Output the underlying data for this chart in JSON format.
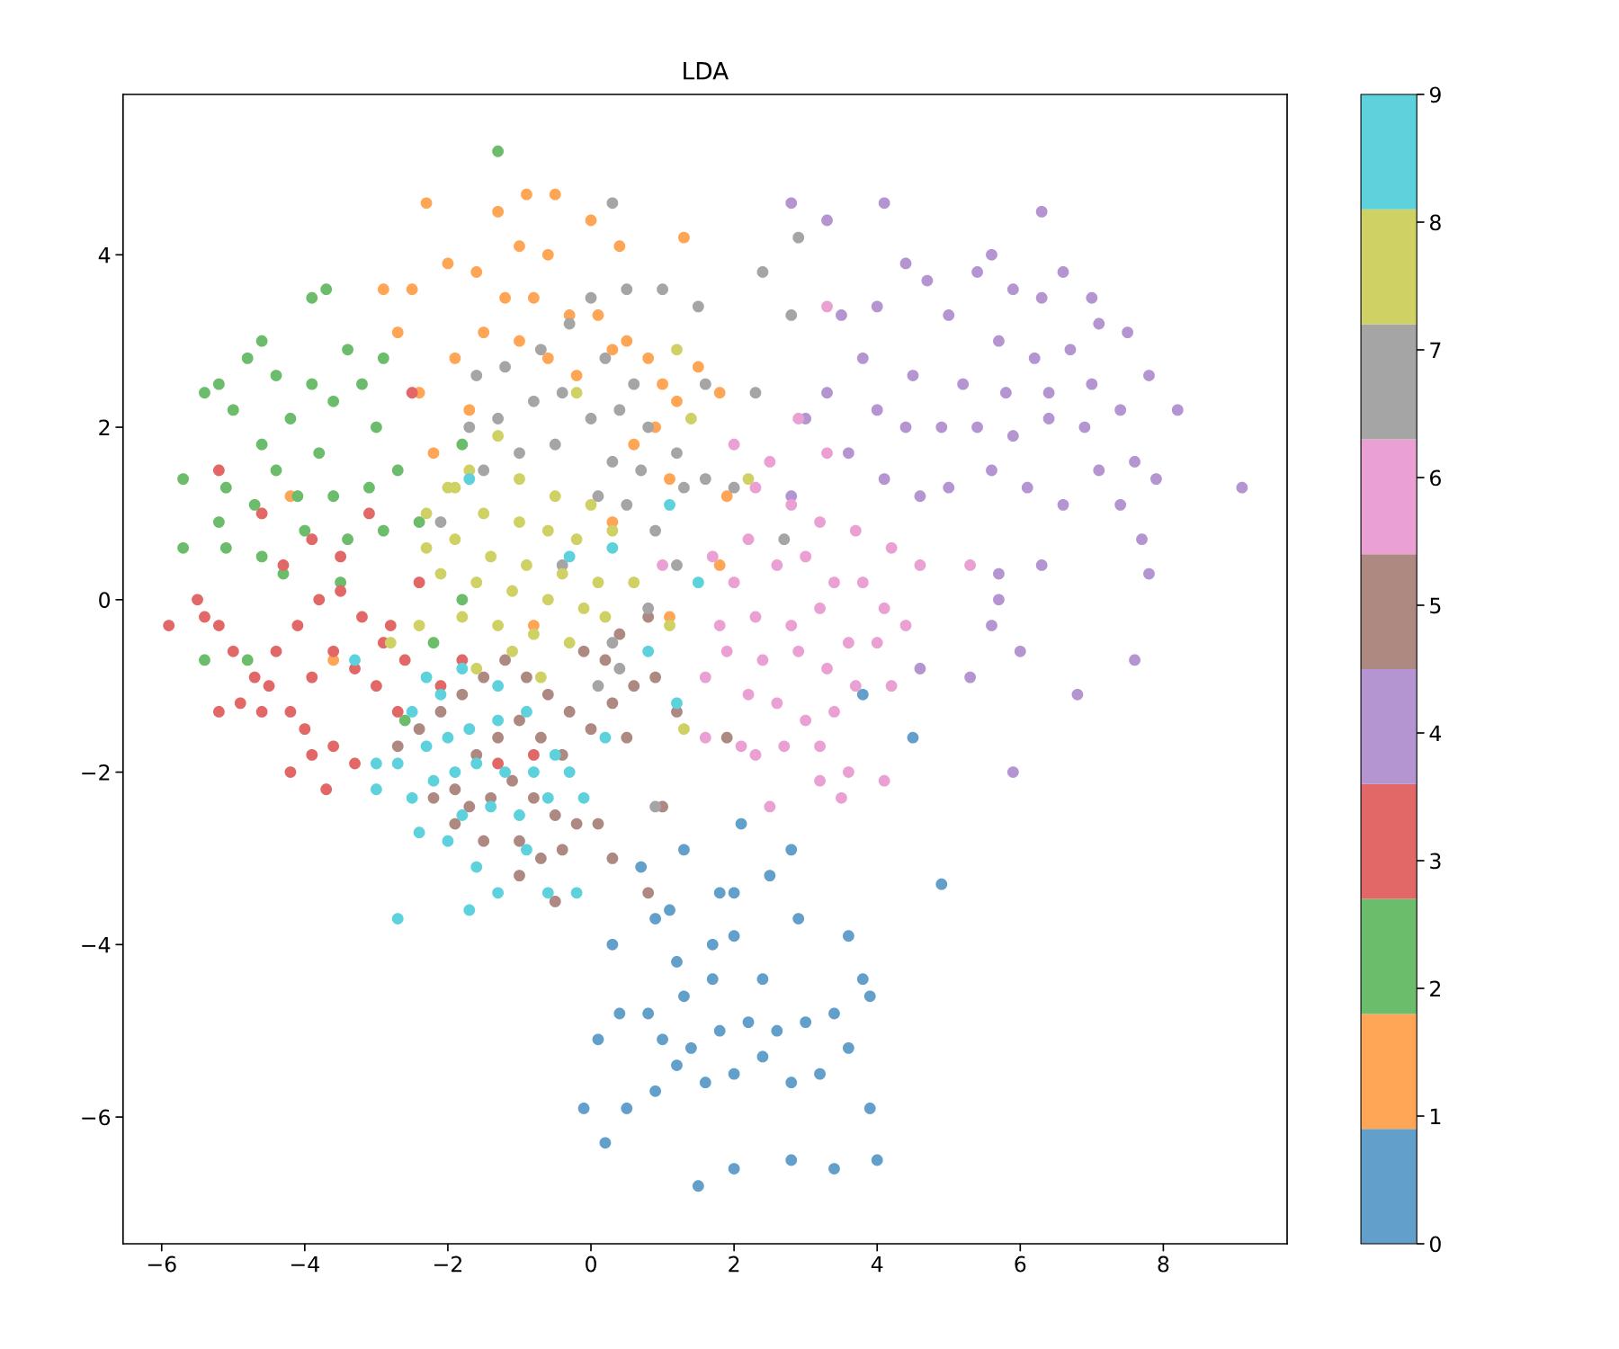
{
  "chart_data": {
    "type": "scatter",
    "title": "LDA",
    "xlim": [
      -6.54,
      9.73
    ],
    "ylim": [
      -7.47,
      5.86
    ],
    "xticks": [
      {
        "value": -6,
        "label": "−6"
      },
      {
        "value": -4,
        "label": "−4"
      },
      {
        "value": -2,
        "label": "−2"
      },
      0,
      2,
      4,
      6,
      8
    ],
    "yticks": [
      {
        "value": -6,
        "label": "−6"
      },
      {
        "value": -4,
        "label": "−4"
      },
      {
        "value": -2,
        "label": "−2"
      },
      0,
      2,
      4
    ],
    "clim": [
      0,
      9
    ],
    "cticks": [
      0,
      1,
      2,
      3,
      4,
      5,
      6,
      7,
      8,
      9
    ],
    "grid": false,
    "legend": false,
    "marker": "circle",
    "series": [
      {
        "x": [
          1.5,
          2,
          2.8,
          3.4,
          4,
          0.2,
          -0.1,
          0.5,
          0.9,
          3.9,
          1.2,
          1.6,
          2.0,
          2.4,
          2.8,
          3.2,
          3.6,
          1.0,
          1.4,
          1.8,
          2.2,
          2.6,
          3.0,
          3.4,
          0.1,
          0.4,
          0.8,
          1.3,
          1.7,
          2.4,
          3.8,
          3.9,
          0.3,
          1.2,
          1.7,
          2.0,
          2.9,
          3.6,
          0.9,
          1.8,
          2.0,
          1.1,
          2.5,
          0.7,
          2.1,
          2.8,
          1.3,
          4.9,
          4.5,
          3.8
        ],
        "values": [
          -6.8,
          -6.6,
          -6.5,
          -6.6,
          -6.5,
          -6.3,
          -5.9,
          -5.9,
          -5.7,
          -5.9,
          -5.4,
          -5.6,
          -5.5,
          -5.3,
          -5.6,
          -5.5,
          -5.2,
          -5.1,
          -5.2,
          -5.0,
          -4.9,
          -5.0,
          -4.9,
          -4.8,
          -5.1,
          -4.8,
          -4.8,
          -4.6,
          -4.4,
          -4.4,
          -4.4,
          -4.6,
          -4.0,
          -4.2,
          -4.0,
          -3.9,
          -3.7,
          -3.9,
          -3.7,
          -3.4,
          -3.4,
          -3.6,
          -3.2,
          -3.1,
          -2.6,
          -2.9,
          -2.9,
          -3.3,
          -1.6,
          -1.1
        ],
        "cvalues": [
          0,
          0,
          0,
          0,
          0,
          0,
          0,
          0,
          0,
          0,
          0,
          0,
          0,
          0,
          0,
          0,
          0,
          0,
          0,
          0,
          0,
          0,
          0,
          0,
          0,
          0,
          0,
          0,
          0,
          0,
          0,
          0,
          0,
          0,
          0,
          0,
          0,
          0,
          0,
          0,
          0,
          0,
          0,
          0,
          0,
          0,
          0,
          0,
          0,
          0
        ]
      },
      {
        "x": [
          -1.3,
          -0.9,
          -0.5,
          -2.3,
          -1.0,
          -0.6,
          0,
          0.4,
          1.3,
          -2.0,
          -1.6,
          -2.5,
          -1.2,
          -0.8,
          -0.3,
          0.1,
          0.5,
          0.8,
          1.0,
          -1.5,
          -1.0,
          -0.6,
          -0.2,
          0.3,
          -2.4,
          -1.9,
          -1.7,
          0.9,
          1.1,
          1.9,
          1.8,
          1.5,
          -2.7,
          -2.9,
          1.2,
          0.6,
          0.3,
          1.1,
          -0.8,
          -3.6,
          -4.2,
          -2.2,
          1.8
        ],
        "values": [
          4.5,
          4.7,
          4.7,
          4.6,
          4.1,
          4.0,
          4.4,
          4.1,
          4.2,
          3.9,
          3.8,
          3.6,
          3.5,
          3.5,
          3.3,
          3.3,
          3.0,
          2.8,
          2.5,
          3.1,
          3.0,
          2.8,
          2.6,
          2.9,
          2.4,
          2.8,
          2.2,
          2.0,
          1.4,
          1.2,
          2.4,
          2.7,
          3.1,
          3.6,
          2.3,
          1.8,
          0.9,
          -0.2,
          -0.3,
          -0.7,
          1.2,
          1.7,
          0.4
        ],
        "cvalues": [
          1,
          1,
          1,
          1,
          1,
          1,
          1,
          1,
          1,
          1,
          1,
          1,
          1,
          1,
          1,
          1,
          1,
          1,
          1,
          1,
          1,
          1,
          1,
          1,
          1,
          1,
          1,
          1,
          1,
          1,
          1,
          1,
          1,
          1,
          1,
          1,
          1,
          1,
          1,
          1,
          1,
          1,
          1
        ]
      },
      {
        "x": [
          -5.7,
          -5.4,
          -5.2,
          -4.6,
          -4.8,
          -3.9,
          -3.7,
          -3.4,
          -3.9,
          -4.4,
          -5.0,
          -4.6,
          -4.2,
          -3.6,
          -3.2,
          -3.0,
          -3.8,
          -4.4,
          -5.1,
          -4.7,
          -4.1,
          -3.6,
          -3.1,
          -2.7,
          -2.9,
          -3.4,
          -4.0,
          -4.6,
          -5.1,
          -4.3,
          -5.7,
          -5.4,
          -4.8,
          -2.4,
          -1.8,
          -1.3,
          -2.9,
          -3.5,
          -2.6,
          -2.2,
          -5.2,
          -1.8
        ],
        "values": [
          1.4,
          2.4,
          2.5,
          3.0,
          2.8,
          3.5,
          3.6,
          2.9,
          2.5,
          2.6,
          2.2,
          1.8,
          2.1,
          2.3,
          2.5,
          2.0,
          1.7,
          1.5,
          1.3,
          1.1,
          1.2,
          1.2,
          1.3,
          1.5,
          0.8,
          0.7,
          0.8,
          0.5,
          0.6,
          0.3,
          0.6,
          -0.7,
          -0.7,
          0.9,
          1.8,
          5.2,
          2.8,
          0.2,
          -1.4,
          -0.5,
          0.9,
          0.0
        ],
        "cvalues": [
          2,
          2,
          2,
          2,
          2,
          2,
          2,
          2,
          2,
          2,
          2,
          2,
          2,
          2,
          2,
          2,
          2,
          2,
          2,
          2,
          2,
          2,
          2,
          2,
          2,
          2,
          2,
          2,
          2,
          2,
          2,
          2,
          2,
          2,
          2,
          2,
          2,
          2,
          2,
          2,
          2,
          2
        ]
      },
      {
        "x": [
          -5.9,
          -5.5,
          -5.2,
          -5.0,
          -4.7,
          -4.4,
          -4.1,
          -3.8,
          -3.5,
          -3.2,
          -2.9,
          -2.6,
          -4.9,
          -4.5,
          -4.2,
          -3.9,
          -3.6,
          -3.3,
          -3.0,
          -2.7,
          -5.2,
          -4.6,
          -4.0,
          -3.6,
          -3.3,
          -4.2,
          -3.9,
          -3.7,
          -4.3,
          -3.9,
          -3.5,
          -3.1,
          -4.6,
          -5.2,
          -2.5,
          -2.4,
          -2.8,
          -5.4,
          -1.3,
          -0.8,
          -2.1,
          -1.8
        ],
        "values": [
          -0.3,
          0,
          -0.3,
          -0.6,
          -0.9,
          -0.6,
          -0.3,
          0,
          0.1,
          -0.2,
          -0.5,
          -0.7,
          -1.2,
          -1.0,
          -1.3,
          -0.9,
          -0.6,
          -0.8,
          -1.0,
          -1.3,
          -1.3,
          -1.3,
          -1.5,
          -1.7,
          -1.9,
          -2.0,
          -1.8,
          -2.2,
          0.4,
          0.7,
          0.5,
          1.0,
          1.0,
          1.5,
          2.4,
          0.2,
          -0.3,
          -0.2,
          -1.9,
          -1.8,
          -1.0,
          -0.7
        ],
        "cvalues": [
          3,
          3,
          3,
          3,
          3,
          3,
          3,
          3,
          3,
          3,
          3,
          3,
          3,
          3,
          3,
          3,
          3,
          3,
          3,
          3,
          3,
          3,
          3,
          3,
          3,
          3,
          3,
          3,
          3,
          3,
          3,
          3,
          3,
          3,
          3,
          3,
          3,
          3,
          3,
          3,
          3,
          3
        ]
      },
      {
        "x": [
          2.8,
          3.3,
          4.1,
          6.3,
          5.6,
          5.4,
          4.7,
          4.4,
          6.6,
          7.0,
          6.3,
          5.9,
          4.0,
          3.5,
          5.0,
          7.5,
          7.1,
          6.7,
          6.2,
          5.7,
          3.8,
          4.5,
          5.2,
          5.8,
          6.4,
          7.0,
          7.8,
          8.2,
          7.4,
          6.9,
          6.4,
          5.9,
          5.4,
          4.9,
          4.4,
          4.0,
          3.3,
          3.0,
          3.6,
          4.1,
          4.6,
          5.0,
          5.6,
          6.1,
          6.6,
          7.1,
          7.6,
          7.9,
          7.4,
          9.1,
          7.7,
          7.8,
          6.3,
          5.7,
          5.7,
          5.6,
          6.0,
          5.3,
          6.8,
          7.6,
          5.9,
          4.6,
          2.8
        ],
        "values": [
          4.6,
          4.4,
          4.6,
          4.5,
          4.0,
          3.8,
          3.7,
          3.9,
          3.8,
          3.5,
          3.5,
          3.6,
          3.4,
          3.3,
          3.3,
          3.1,
          3.2,
          2.9,
          2.8,
          3.0,
          2.8,
          2.6,
          2.5,
          2.4,
          2.4,
          2.5,
          2.6,
          2.2,
          2.2,
          2.0,
          2.1,
          1.9,
          2.0,
          2.0,
          2.0,
          2.2,
          2.4,
          2.1,
          1.7,
          1.4,
          1.2,
          1.3,
          1.5,
          1.3,
          1.1,
          1.5,
          1.6,
          1.4,
          1.1,
          1.3,
          0.7,
          0.3,
          0.4,
          0.3,
          0.0,
          -0.3,
          -0.6,
          -0.9,
          -1.1,
          -0.7,
          -2.0,
          -0.8,
          1.2
        ],
        "cvalues": [
          4,
          4,
          4,
          4,
          4,
          4,
          4,
          4,
          4,
          4,
          4,
          4,
          4,
          4,
          4,
          4,
          4,
          4,
          4,
          4,
          4,
          4,
          4,
          4,
          4,
          4,
          4,
          4,
          4,
          4,
          4,
          4,
          4,
          4,
          4,
          4,
          4,
          4,
          4,
          4,
          4,
          4,
          4,
          4,
          4,
          4,
          4,
          4,
          4,
          4,
          4,
          4,
          4,
          4,
          4,
          4,
          4,
          4,
          4,
          4,
          4,
          4,
          4
        ]
      },
      {
        "x": [
          -2.7,
          -2.4,
          -2.1,
          -1.8,
          -1.5,
          -1.2,
          -0.9,
          -0.6,
          -0.3,
          0,
          0.3,
          0.6,
          0.9,
          1.2,
          0.5,
          0.2,
          -0.1,
          -0.4,
          -0.7,
          -1.0,
          -1.3,
          -1.6,
          -1.9,
          -2.2,
          -1.7,
          -1.4,
          -1.1,
          -0.8,
          -0.5,
          -0.2,
          0.1,
          -1.5,
          -1.0,
          -0.7,
          -0.4,
          -1.0,
          -0.5,
          0.3,
          0.8,
          1.0,
          -1.9,
          0.8,
          0.4,
          1.9
        ],
        "values": [
          -1.7,
          -1.5,
          -1.3,
          -1.1,
          -0.9,
          -0.7,
          -0.9,
          -1.1,
          -1.3,
          -1.5,
          -1.2,
          -1.0,
          -0.9,
          -1.3,
          -1.6,
          -0.7,
          -0.6,
          -1.8,
          -1.6,
          -1.4,
          -1.6,
          -1.8,
          -2.2,
          -2.3,
          -2.4,
          -2.3,
          -2.1,
          -2.3,
          -2.5,
          -2.6,
          -2.6,
          -2.8,
          -2.8,
          -3.0,
          -2.9,
          -3.2,
          -3.5,
          -3.0,
          -3.4,
          -2.4,
          -2.6,
          -0.2,
          -0.4,
          -1.6
        ],
        "cvalues": [
          5,
          5,
          5,
          5,
          5,
          5,
          5,
          5,
          5,
          5,
          5,
          5,
          5,
          5,
          5,
          5,
          5,
          5,
          5,
          5,
          5,
          5,
          5,
          5,
          5,
          5,
          5,
          5,
          5,
          5,
          5,
          5,
          5,
          5,
          5,
          5,
          5,
          5,
          5,
          5,
          5,
          5,
          5,
          5
        ]
      },
      {
        "x": [
          2.0,
          2.5,
          2.9,
          3.3,
          2.3,
          2.8,
          3.2,
          3.7,
          4.2,
          4.6,
          2.2,
          2.6,
          3.0,
          3.4,
          3.8,
          4.1,
          4.4,
          2.0,
          1.8,
          2.3,
          2.8,
          3.2,
          3.6,
          4.0,
          1.9,
          2.4,
          2.9,
          3.3,
          3.7,
          4.2,
          1.6,
          2.2,
          2.6,
          3.0,
          3.4,
          1.6,
          2.1,
          2.7,
          3.2,
          2.3,
          3.6,
          4.1,
          3.2,
          2.5,
          3.5,
          1.7,
          3.3,
          5.3,
          1.0
        ],
        "values": [
          1.8,
          1.6,
          2.1,
          1.7,
          1.3,
          1.1,
          0.9,
          0.8,
          0.6,
          0.4,
          0.7,
          0.4,
          0.5,
          0.2,
          0.2,
          -0.1,
          -0.3,
          0.2,
          -0.3,
          -0.2,
          -0.3,
          -0.1,
          -0.5,
          -0.5,
          -0.6,
          -0.7,
          -0.6,
          -0.8,
          -1.0,
          -1.0,
          -0.9,
          -1.1,
          -1.2,
          -1.4,
          -1.3,
          -1.6,
          -1.7,
          -1.7,
          -1.7,
          -1.8,
          -2.0,
          -2.1,
          -2.1,
          -2.4,
          -2.3,
          0.5,
          3.4,
          0.4,
          0.4
        ],
        "cvalues": [
          6,
          6,
          6,
          6,
          6,
          6,
          6,
          6,
          6,
          6,
          6,
          6,
          6,
          6,
          6,
          6,
          6,
          6,
          6,
          6,
          6,
          6,
          6,
          6,
          6,
          6,
          6,
          6,
          6,
          6,
          6,
          6,
          6,
          6,
          6,
          6,
          6,
          6,
          6,
          6,
          6,
          6,
          6,
          6,
          6,
          6,
          6,
          6,
          6
        ]
      },
      {
        "x": [
          0.3,
          2.9,
          2.4,
          2.8,
          0.5,
          0,
          1.0,
          1.5,
          -0.3,
          -0.7,
          -1.2,
          -1.6,
          0.2,
          0.6,
          -0.4,
          -0.8,
          -1.3,
          -1.7,
          0.0,
          0.4,
          0.8,
          1.2,
          -0.5,
          -1.0,
          0.3,
          0.7,
          1.6,
          2.0,
          -1.5,
          0.1,
          0.5,
          0.9,
          1.3,
          1.2,
          0.8,
          0.3,
          0.4,
          0.1,
          2.3,
          1.6,
          -2.1,
          2.7,
          -0.4,
          0.9
        ],
        "values": [
          4.6,
          4.2,
          3.8,
          3.3,
          3.6,
          3.5,
          3.6,
          3.4,
          3.2,
          2.9,
          2.7,
          2.6,
          2.8,
          2.5,
          2.4,
          2.3,
          2.1,
          2.0,
          2.1,
          2.2,
          2.0,
          1.7,
          1.8,
          1.7,
          1.6,
          1.5,
          1.4,
          1.3,
          1.5,
          1.2,
          1.1,
          0.8,
          1.3,
          0.4,
          -0.1,
          -0.5,
          -0.8,
          -1.0,
          2.4,
          2.5,
          0.9,
          0.7,
          0.4,
          -2.4
        ],
        "cvalues": [
          7,
          7,
          7,
          7,
          7,
          7,
          7,
          7,
          7,
          7,
          7,
          7,
          7,
          7,
          7,
          7,
          7,
          7,
          7,
          7,
          7,
          7,
          7,
          7,
          7,
          7,
          7,
          7,
          7,
          7,
          7,
          7,
          7,
          7,
          7,
          7,
          7,
          7,
          7,
          7,
          7,
          7,
          7,
          7
        ]
      },
      {
        "x": [
          1.2,
          1.4,
          -0.2,
          -1.3,
          -1.7,
          -1.0,
          -0.5,
          0,
          -2.0,
          -1.5,
          -1.0,
          -0.6,
          -0.2,
          0.3,
          -2.3,
          -1.9,
          -1.4,
          -0.9,
          -0.4,
          0.1,
          -2.1,
          -1.6,
          -1.1,
          -0.6,
          -0.1,
          -1.8,
          -1.3,
          -0.8,
          -0.3,
          0.2,
          -1.6,
          -1.1,
          -0.7,
          -2.4,
          -2.8,
          -2.3,
          0.6,
          1.3,
          2.2,
          1.1,
          -1.9
        ],
        "values": [
          2.9,
          2.1,
          2.4,
          1.9,
          1.5,
          1.4,
          1.2,
          1.1,
          1.3,
          1.0,
          0.9,
          0.8,
          0.7,
          0.8,
          1.0,
          0.7,
          0.5,
          0.4,
          0.3,
          0.2,
          0.3,
          0.2,
          0.1,
          0,
          -0.1,
          -0.2,
          -0.3,
          -0.4,
          -0.5,
          -0.2,
          -0.8,
          -0.6,
          -0.9,
          -0.3,
          -0.5,
          0.6,
          0.2,
          -1.5,
          1.4,
          -0.3,
          1.3
        ],
        "cvalues": [
          8,
          8,
          8,
          8,
          8,
          8,
          8,
          8,
          8,
          8,
          8,
          8,
          8,
          8,
          8,
          8,
          8,
          8,
          8,
          8,
          8,
          8,
          8,
          8,
          8,
          8,
          8,
          8,
          8,
          8,
          8,
          8,
          8,
          8,
          8,
          8,
          8,
          8,
          8,
          8,
          8
        ]
      },
      {
        "x": [
          -2.7,
          -1.7,
          -1.3,
          -0.6,
          -1.6,
          -2.0,
          -2.4,
          -1.8,
          -1.4,
          -1.0,
          -0.6,
          -2.5,
          -2.2,
          -1.9,
          -1.6,
          -1.2,
          -0.8,
          -0.3,
          -2.7,
          -2.3,
          -2.0,
          -1.7,
          -1.3,
          -0.9,
          -0.5,
          -2.5,
          -2.1,
          -1.8,
          -1.3,
          -3.0,
          -3.0,
          -2.3,
          -0.9,
          -0.2,
          -0.1,
          0.2,
          1.2,
          0.8,
          1.1,
          1.5,
          -1.7,
          -0.3,
          0.3,
          -3.3
        ],
        "values": [
          -3.7,
          -3.6,
          -3.4,
          -3.4,
          -3.1,
          -2.8,
          -2.7,
          -2.5,
          -2.4,
          -2.5,
          -2.3,
          -2.3,
          -2.1,
          -2.0,
          -1.9,
          -2.0,
          -2.0,
          -2.0,
          -1.9,
          -1.7,
          -1.6,
          -1.5,
          -1.4,
          -1.3,
          -1.8,
          -1.3,
          -1.1,
          -0.8,
          -1.0,
          -1.9,
          -2.2,
          -0.9,
          -2.9,
          -3.4,
          -2.3,
          -1.6,
          -1.2,
          -0.6,
          1.1,
          0.2,
          1.4,
          0.5,
          0.6,
          -0.7
        ],
        "cvalues": [
          9,
          9,
          9,
          9,
          9,
          9,
          9,
          9,
          9,
          9,
          9,
          9,
          9,
          9,
          9,
          9,
          9,
          9,
          9,
          9,
          9,
          9,
          9,
          9,
          9,
          9,
          9,
          9,
          9,
          9,
          9,
          9,
          9,
          9,
          9,
          9,
          9,
          9,
          9,
          9,
          9,
          9,
          9,
          9
        ]
      }
    ]
  }
}
